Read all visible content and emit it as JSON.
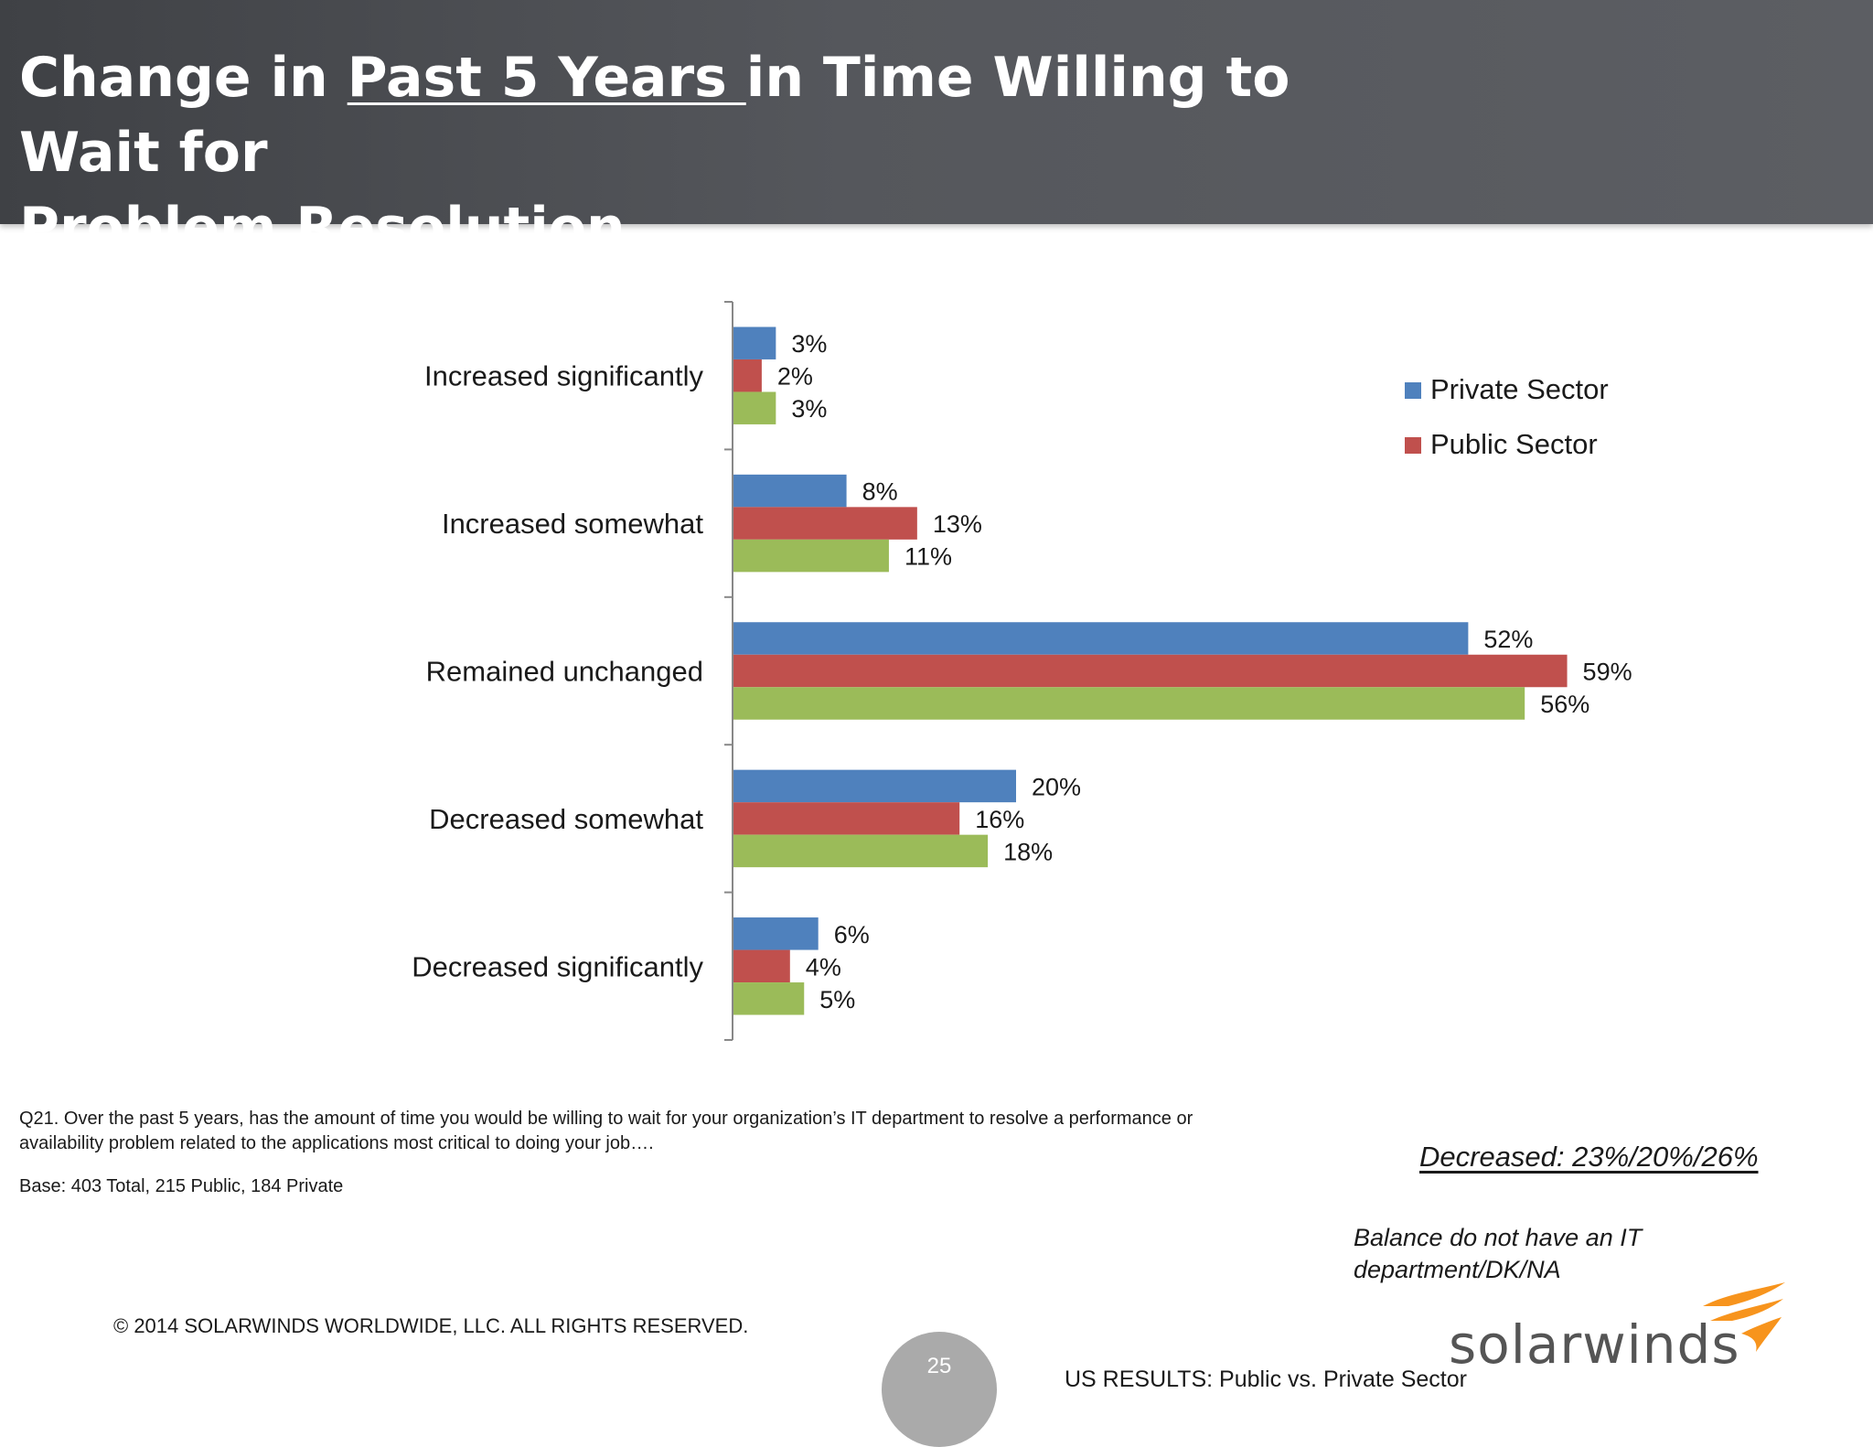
{
  "title": {
    "part1": "Change in ",
    "part2": "Past 5 Years ",
    "part3": "in Time Willing to Wait for ",
    "part4": "Problem ",
    "part5": "Resolution"
  },
  "legend": {
    "items": [
      {
        "label": "Private Sector",
        "color": "#4f81bd"
      },
      {
        "label": "Public Sector",
        "color": "#c0504d"
      }
    ]
  },
  "chart_data": {
    "type": "bar",
    "orientation": "horizontal",
    "categories": [
      "Increased significantly",
      "Increased somewhat",
      "Remained unchanged",
      "Decreased somewhat",
      "Decreased significantly"
    ],
    "series": [
      {
        "name": "Private Sector",
        "color": "#4f81bd",
        "values": [
          3,
          8,
          52,
          20,
          6
        ]
      },
      {
        "name": "Public Sector",
        "color": "#c0504d",
        "values": [
          2,
          13,
          59,
          16,
          4
        ]
      },
      {
        "color": "#9bbb59",
        "values": [
          3,
          11,
          56,
          18,
          5
        ]
      }
    ],
    "value_suffix": "%",
    "xlim": [
      0,
      70
    ],
    "grid": false,
    "legend_position": "right"
  },
  "footnote": {
    "question": "Q21. Over the past 5 years, has the amount of time you would be willing to wait for your organization’s IT department to resolve a performance or availability problem related to the applications most critical to doing your job….",
    "base": "Base:  403  Total, 215 Public, 184 Private"
  },
  "summary": {
    "decreased": "Decreased:  23%/20%/26%",
    "balance": "Balance do not have an IT department/DK/NA"
  },
  "footer": {
    "copyright": "© 2014 SOLARWINDS WORLDWIDE, LLC.  ALL RIGHTS RESERVED.",
    "page_number": "25",
    "subtitle": "US RESULTS:  Public vs. Private Sector",
    "logo_text": "solarwinds"
  }
}
